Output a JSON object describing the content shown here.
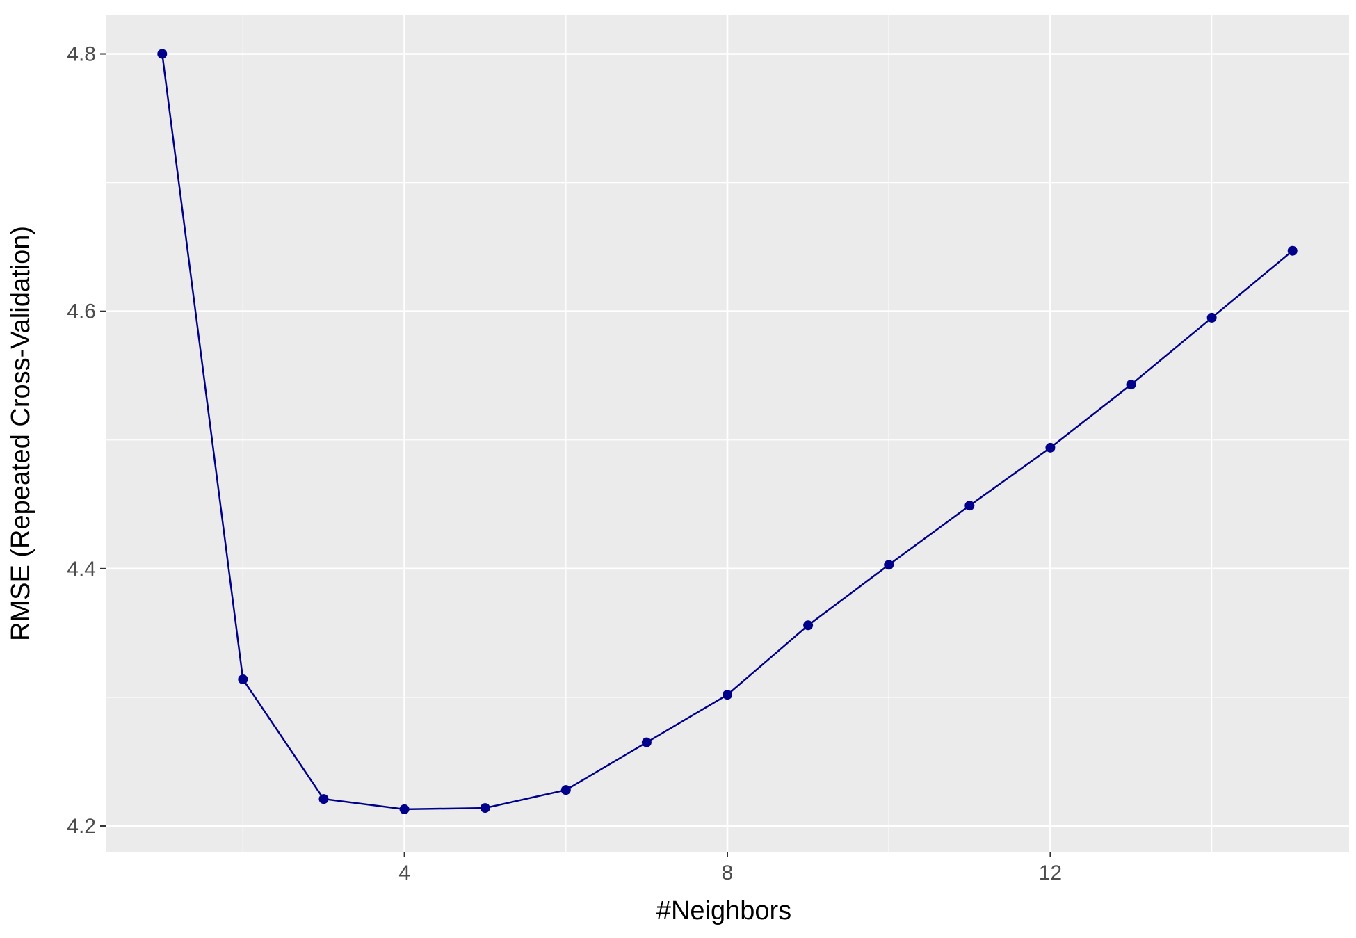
{
  "chart_data": {
    "type": "line",
    "xlabel": "#Neighbors",
    "ylabel": "RMSE (Repeated Cross-Validation)",
    "x": [
      1,
      2,
      3,
      4,
      5,
      6,
      7,
      8,
      9,
      10,
      11,
      12,
      13,
      14,
      15
    ],
    "series": [
      {
        "values": [
          4.8,
          4.314,
          4.221,
          4.213,
          4.214,
          4.228,
          4.265,
          4.302,
          4.356,
          4.403,
          4.449,
          4.494,
          4.543,
          4.595,
          4.647
        ]
      }
    ],
    "xlim": [
      0.3,
      15.7
    ],
    "ylim": [
      4.18,
      4.83
    ],
    "x_ticks": [
      "4",
      "8",
      "12"
    ],
    "y_ticks": [
      "4.2",
      "4.4",
      "4.6",
      "4.8"
    ],
    "grid": true,
    "colors": {
      "panel_background": "#ebebeb",
      "grid": "#ffffff",
      "series": "#00008b"
    }
  }
}
